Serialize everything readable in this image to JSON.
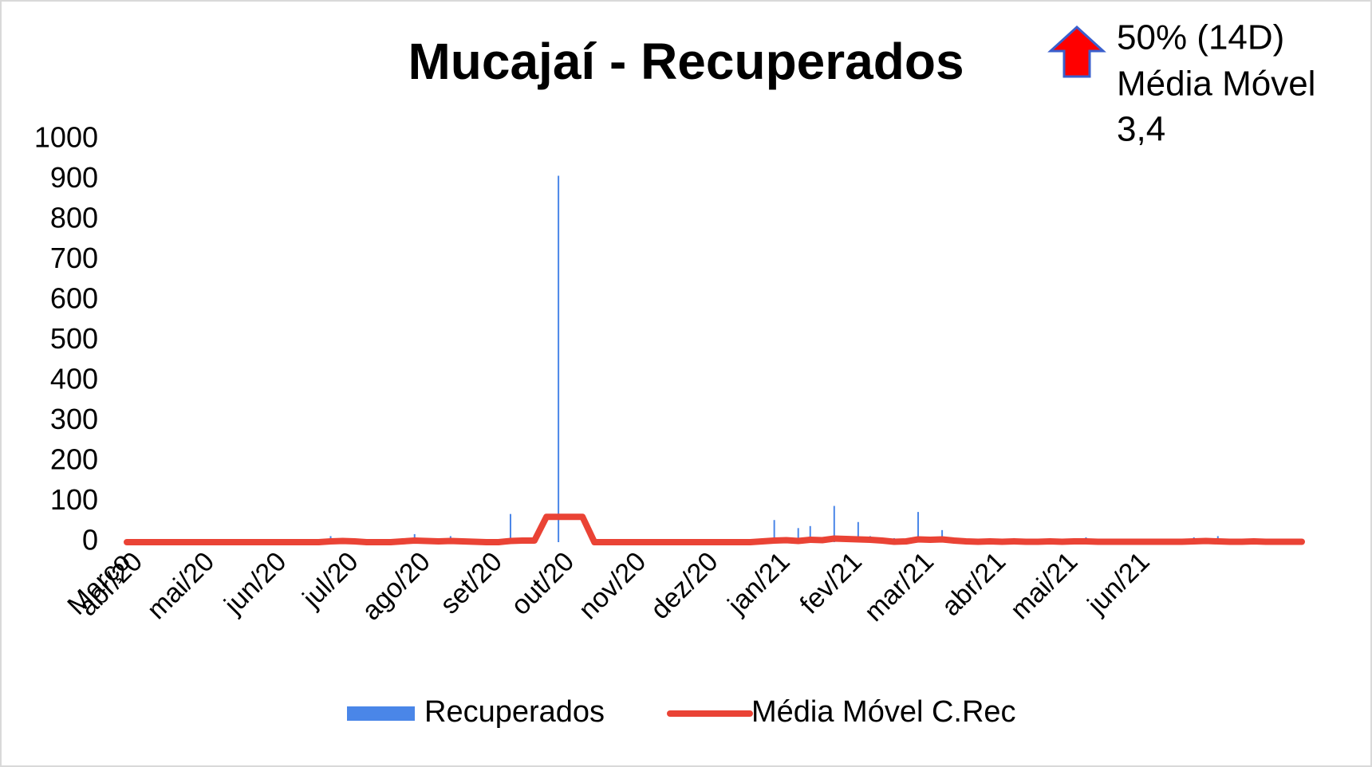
{
  "chart_data": {
    "type": "bar",
    "title": "Mucajaí - Recuperados",
    "annotation": [
      "50% (14D)",
      "Média Móvel",
      "3,4"
    ],
    "categories": [
      "Março",
      "abr/20",
      null,
      null,
      null,
      null,
      null,
      "mai/20",
      null,
      null,
      null,
      null,
      null,
      "jun/20",
      null,
      null,
      null,
      null,
      null,
      "jul/20",
      null,
      null,
      null,
      null,
      null,
      "ago/20",
      null,
      null,
      null,
      null,
      null,
      "set/20",
      null,
      null,
      null,
      null,
      null,
      "out/20",
      null,
      null,
      null,
      null,
      null,
      "nov/20",
      null,
      null,
      null,
      null,
      null,
      "dez/20",
      null,
      null,
      null,
      null,
      null,
      "jan/21",
      null,
      null,
      null,
      null,
      null,
      "fev/21",
      null,
      null,
      null,
      null,
      null,
      "mar/21",
      null,
      null,
      null,
      null,
      null,
      "abr/21",
      null,
      null,
      null,
      null,
      null,
      "mai/21",
      null,
      null,
      null,
      null,
      null,
      "jun/21",
      null,
      null,
      null,
      null,
      null,
      null,
      null,
      null,
      null,
      null,
      null,
      null,
      null
    ],
    "series": [
      {
        "name": "Recuperados",
        "type": "bar",
        "color": "#4a86e8",
        "values": [
          0,
          0,
          0,
          0,
          0,
          0,
          0,
          0,
          0,
          0,
          0,
          0,
          0,
          0,
          0,
          0,
          0,
          15,
          0,
          0,
          0,
          0,
          0,
          10,
          20,
          0,
          0,
          15,
          0,
          0,
          0,
          0,
          70,
          0,
          0,
          0,
          910,
          0,
          0,
          0,
          0,
          0,
          0,
          0,
          0,
          0,
          0,
          0,
          0,
          0,
          0,
          0,
          0,
          0,
          55,
          0,
          35,
          40,
          0,
          90,
          0,
          50,
          15,
          0,
          10,
          0,
          75,
          0,
          30,
          0,
          0,
          0,
          0,
          0,
          10,
          0,
          0,
          0,
          0,
          0,
          12,
          0,
          0,
          0,
          0,
          0,
          0,
          0,
          0,
          12,
          0,
          15,
          0,
          0,
          8,
          0,
          0,
          0,
          0
        ]
      },
      {
        "name": "Média Móvel C.Rec",
        "type": "line",
        "color": "#ea4335",
        "values": [
          0,
          0,
          0,
          0,
          0,
          0,
          0,
          0,
          0,
          0,
          0,
          0,
          0,
          0,
          0,
          0,
          0,
          2,
          3,
          2,
          0,
          0,
          0,
          2,
          4,
          3,
          2,
          3,
          2,
          1,
          0,
          0,
          3,
          4,
          4,
          63,
          63,
          63,
          63,
          0,
          0,
          0,
          0,
          0,
          0,
          0,
          0,
          0,
          0,
          0,
          0,
          0,
          0,
          2,
          4,
          5,
          3,
          6,
          5,
          9,
          8,
          7,
          6,
          4,
          1,
          2,
          7,
          6,
          7,
          4,
          2,
          1,
          2,
          1,
          2,
          1,
          1,
          2,
          1,
          2,
          2,
          1,
          1,
          1,
          1,
          1,
          1,
          1,
          1,
          2,
          3,
          2,
          1,
          1,
          2,
          1,
          1,
          1,
          1
        ]
      }
    ],
    "ylim": [
      0,
      1000
    ],
    "yticks": [
      0,
      100,
      200,
      300,
      400,
      500,
      600,
      700,
      800,
      900,
      1000
    ],
    "grid": false,
    "legend": "bottom"
  }
}
